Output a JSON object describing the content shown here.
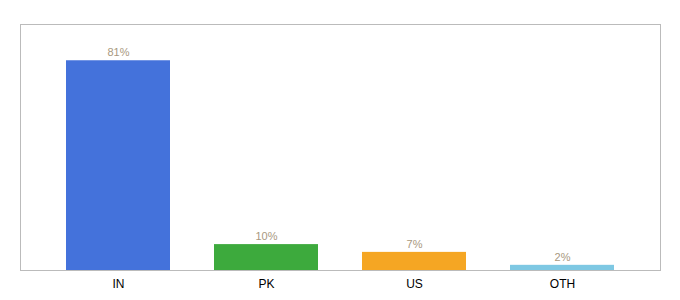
{
  "chart_data": {
    "type": "bar",
    "categories": [
      "IN",
      "PK",
      "US",
      "OTH"
    ],
    "values": [
      81,
      10,
      7,
      2
    ],
    "value_labels": [
      "81%",
      "10%",
      "7%",
      "2%"
    ],
    "colors": [
      "#4472db",
      "#3daa3d",
      "#f5a623",
      "#7ec8e3"
    ],
    "ylim": [
      0,
      95
    ],
    "data_labels": true,
    "tick_labels": "x",
    "grid": false
  }
}
